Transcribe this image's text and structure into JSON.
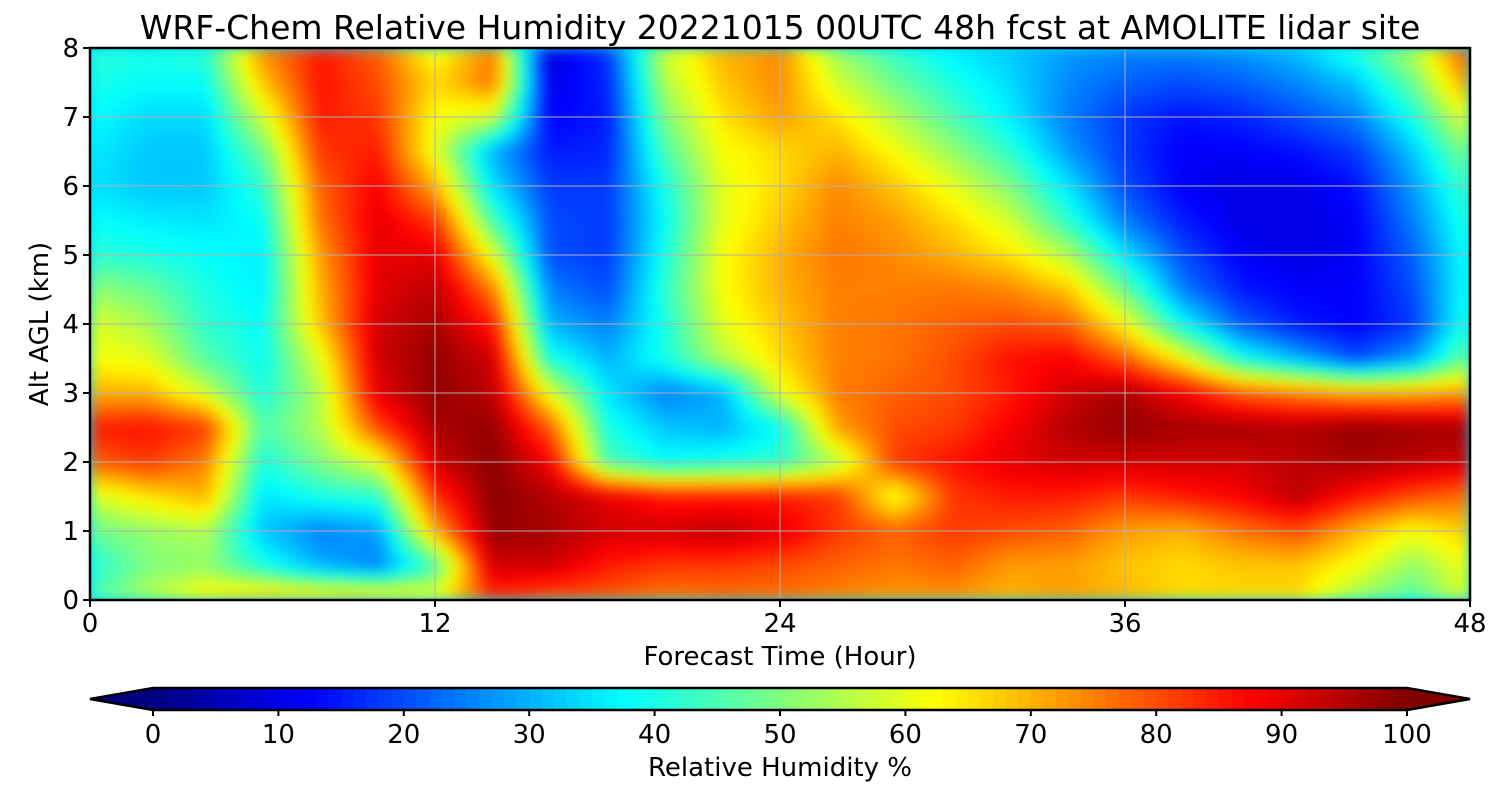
{
  "chart_data": {
    "type": "heatmap",
    "title": "WRF-Chem Relative Humidity 20221015 00UTC 48h fcst at AMOLITE lidar site",
    "xlabel": "Forecast Time (Hour)",
    "ylabel": "Alt AGL (km)",
    "xlim": [
      0,
      48
    ],
    "ylim": [
      0,
      8
    ],
    "xticks": [
      0,
      12,
      24,
      36,
      48
    ],
    "yticks": [
      0,
      1,
      2,
      3,
      4,
      5,
      6,
      7,
      8
    ],
    "grid": true,
    "colormap": "jet",
    "colorbar": {
      "label": "Relative Humidity %",
      "ticks": [
        0,
        10,
        20,
        30,
        40,
        50,
        60,
        70,
        80,
        90,
        100
      ],
      "range": [
        0,
        100
      ],
      "extend": "both",
      "orientation": "horizontal",
      "placement": "bottom"
    },
    "x": [
      0,
      2,
      4,
      6,
      8,
      10,
      12,
      14,
      16,
      18,
      20,
      22,
      24,
      26,
      28,
      30,
      32,
      34,
      36,
      38,
      40,
      42,
      44,
      46,
      48
    ],
    "y": [
      0,
      0.5,
      1,
      1.5,
      2,
      2.5,
      3,
      3.5,
      4,
      4.5,
      5,
      5.5,
      6,
      6.5,
      7,
      7.5,
      8
    ],
    "z": [
      [
        45,
        55,
        65,
        70,
        70,
        70,
        62,
        82,
        78,
        78,
        75,
        76,
        76,
        74,
        72,
        72,
        70,
        72,
        70,
        66,
        66,
        66,
        52,
        45,
        60
      ],
      [
        40,
        50,
        52,
        40,
        30,
        25,
        45,
        92,
        92,
        85,
        82,
        82,
        80,
        78,
        76,
        78,
        72,
        72,
        68,
        66,
        68,
        68,
        62,
        52,
        62
      ],
      [
        48,
        52,
        55,
        32,
        25,
        28,
        70,
        98,
        96,
        92,
        92,
        94,
        90,
        82,
        78,
        82,
        80,
        78,
        72,
        70,
        76,
        80,
        70,
        62,
        68
      ],
      [
        58,
        65,
        70,
        35,
        40,
        42,
        82,
        99,
        95,
        90,
        85,
        85,
        85,
        82,
        60,
        82,
        85,
        85,
        82,
        85,
        88,
        94,
        86,
        80,
        76
      ],
      [
        78,
        82,
        75,
        40,
        50,
        60,
        92,
        99,
        88,
        45,
        38,
        40,
        42,
        55,
        82,
        86,
        90,
        92,
        92,
        92,
        92,
        94,
        96,
        94,
        92
      ],
      [
        85,
        86,
        82,
        45,
        55,
        80,
        96,
        98,
        78,
        40,
        32,
        30,
        38,
        72,
        80,
        82,
        88,
        95,
        98,
        96,
        96,
        95,
        98,
        97,
        96
      ],
      [
        70,
        70,
        58,
        40,
        55,
        90,
        98,
        94,
        60,
        35,
        25,
        30,
        60,
        75,
        78,
        80,
        85,
        92,
        96,
        88,
        78,
        74,
        70,
        70,
        72
      ],
      [
        62,
        60,
        46,
        38,
        60,
        92,
        98,
        92,
        40,
        30,
        40,
        55,
        66,
        75,
        76,
        80,
        86,
        88,
        78,
        62,
        40,
        30,
        20,
        28,
        50
      ],
      [
        60,
        54,
        42,
        38,
        68,
        92,
        96,
        85,
        30,
        25,
        40,
        60,
        68,
        75,
        76,
        78,
        80,
        78,
        62,
        38,
        22,
        15,
        12,
        18,
        42
      ],
      [
        52,
        48,
        40,
        36,
        70,
        90,
        94,
        75,
        25,
        20,
        42,
        62,
        70,
        75,
        75,
        76,
        74,
        68,
        48,
        25,
        15,
        12,
        12,
        20,
        40
      ],
      [
        42,
        40,
        38,
        36,
        72,
        90,
        90,
        60,
        20,
        18,
        40,
        62,
        70,
        76,
        74,
        70,
        65,
        55,
        35,
        20,
        12,
        10,
        12,
        22,
        40
      ],
      [
        38,
        36,
        35,
        38,
        76,
        90,
        82,
        45,
        20,
        18,
        38,
        60,
        68,
        75,
        72,
        66,
        58,
        42,
        25,
        15,
        10,
        10,
        12,
        25,
        42
      ],
      [
        35,
        32,
        32,
        42,
        78,
        88,
        70,
        35,
        18,
        18,
        40,
        60,
        66,
        74,
        68,
        60,
        50,
        35,
        20,
        12,
        10,
        10,
        14,
        28,
        45
      ],
      [
        36,
        32,
        32,
        48,
        82,
        85,
        60,
        30,
        15,
        16,
        45,
        62,
        66,
        70,
        62,
        52,
        42,
        28,
        18,
        12,
        12,
        14,
        18,
        32,
        52
      ],
      [
        38,
        34,
        34,
        58,
        85,
        82,
        62,
        58,
        12,
        15,
        50,
        65,
        72,
        65,
        55,
        45,
        36,
        25,
        18,
        14,
        16,
        20,
        25,
        40,
        62
      ],
      [
        40,
        38,
        38,
        68,
        86,
        80,
        66,
        76,
        10,
        16,
        55,
        68,
        74,
        58,
        48,
        40,
        34,
        26,
        22,
        20,
        22,
        26,
        32,
        48,
        74
      ],
      [
        42,
        40,
        42,
        74,
        85,
        78,
        60,
        76,
        8,
        18,
        58,
        70,
        74,
        52,
        42,
        36,
        32,
        28,
        26,
        26,
        28,
        32,
        42,
        56,
        82
      ]
    ]
  }
}
